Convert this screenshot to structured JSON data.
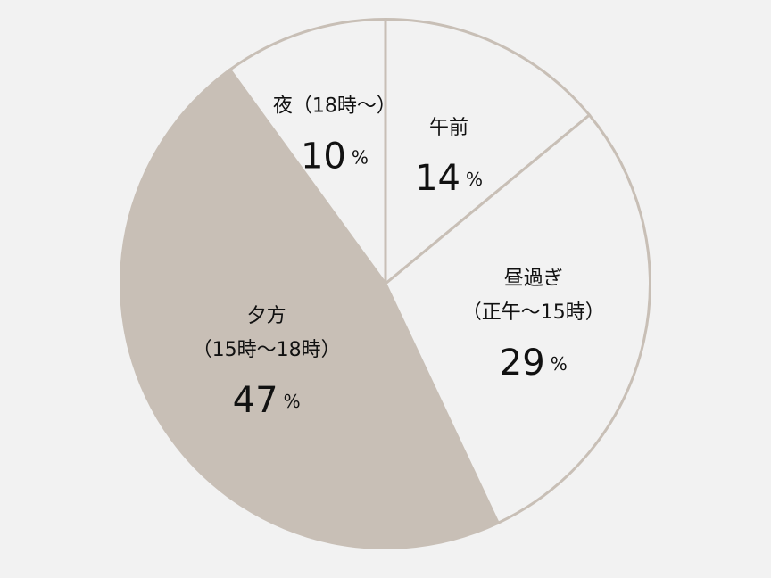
{
  "chart_data": {
    "type": "pie",
    "unit": "%",
    "slices": [
      {
        "label_lines": [
          "午前"
        ],
        "value": 14,
        "color": "#f2f2f2",
        "highlighted": false
      },
      {
        "label_lines": [
          "昼過ぎ",
          "（正午〜15時）"
        ],
        "value": 29,
        "color": "#f2f2f2",
        "highlighted": false
      },
      {
        "label_lines": [
          "夕方",
          "（15時〜18時）"
        ],
        "value": 47,
        "color": "#c8bfb6",
        "highlighted": true
      },
      {
        "label_lines": [
          "夜（18時〜）"
        ],
        "value": 10,
        "color": "#f2f2f2",
        "highlighted": false
      }
    ],
    "start_angle_deg": 0,
    "direction": "clockwise",
    "border_color": "#c8bfb6",
    "legend": "none"
  }
}
